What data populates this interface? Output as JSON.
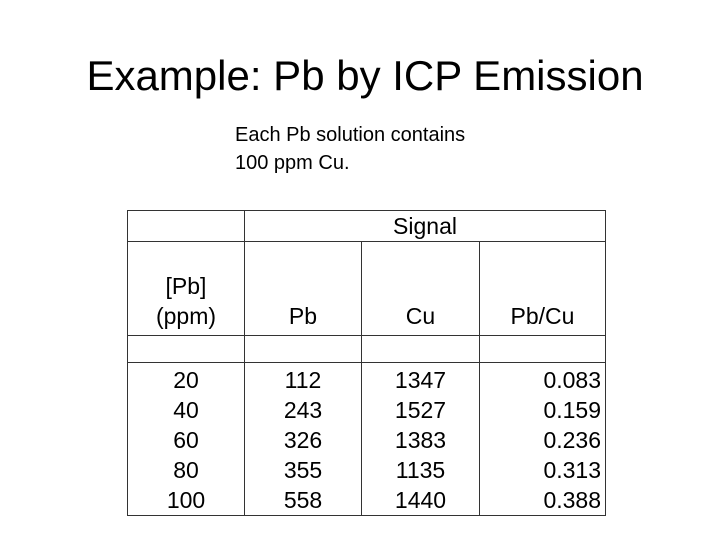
{
  "slide": {
    "title": "Example:  Pb by ICP Emission",
    "subtitle_lines": [
      "Each Pb solution contains",
      "100 ppm Cu."
    ]
  },
  "table": {
    "group_header": "Signal",
    "columns": {
      "concentration_line1": "[Pb]",
      "concentration_line2": "(ppm)",
      "pb": "Pb",
      "cu": "Cu",
      "ratio": "Pb/Cu"
    },
    "concentration": [
      "20",
      "40",
      "60",
      "80",
      "100"
    ],
    "pb_signal": [
      "112",
      "243",
      "326",
      "355",
      "558"
    ],
    "cu_signal": [
      "1347",
      "1527",
      "1383",
      "1135",
      "1440"
    ],
    "pb_cu_ratio": [
      "0.083",
      "0.159",
      "0.236",
      "0.313",
      "0.388"
    ]
  }
}
